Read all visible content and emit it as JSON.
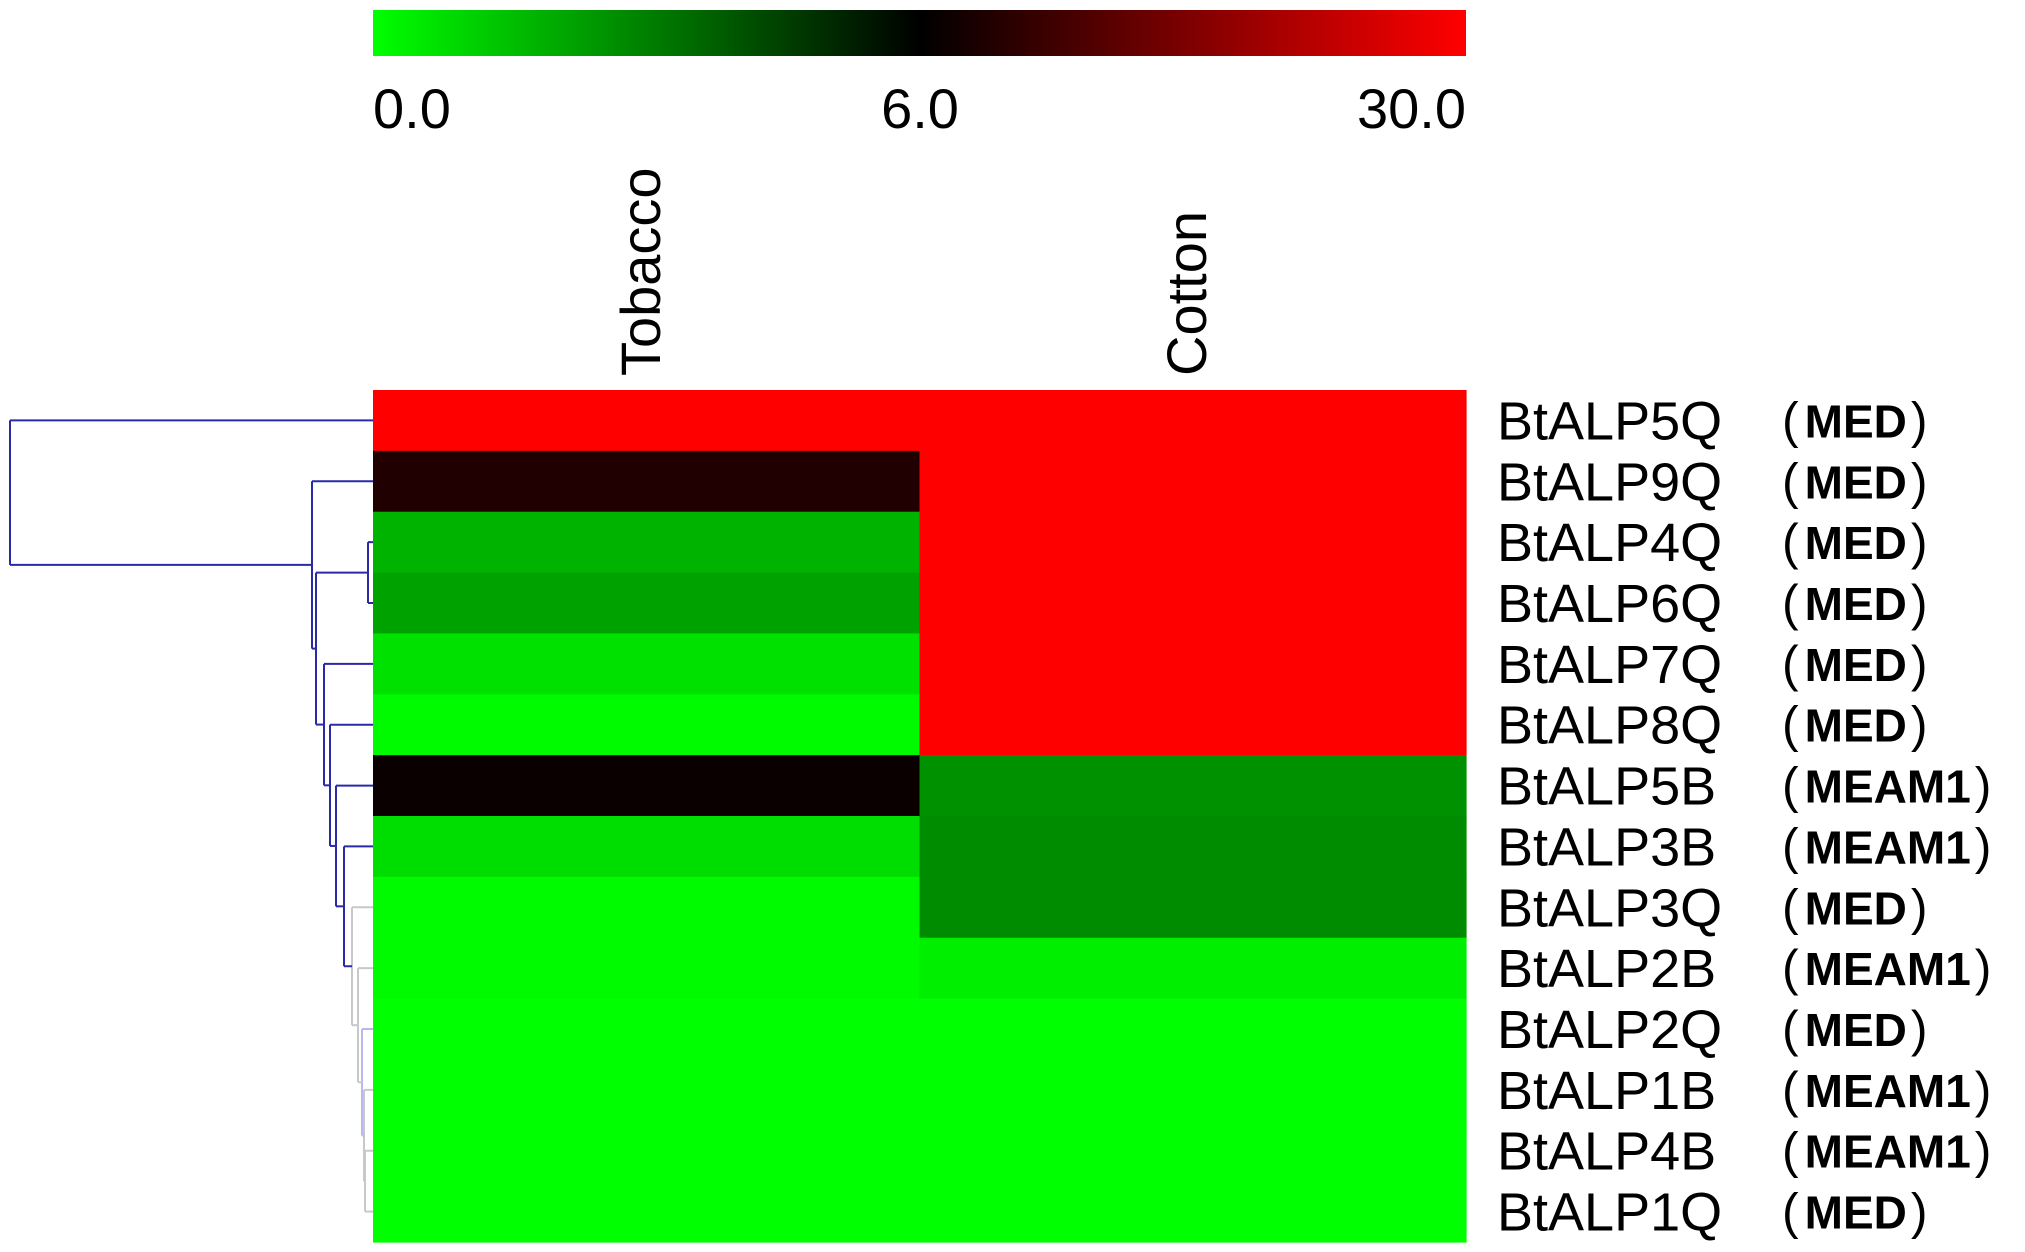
{
  "chart_data": {
    "type": "heatmap",
    "colorbar": {
      "tick_labels": [
        "0.0",
        "6.0",
        "30.0"
      ],
      "stops": [
        {
          "value": 0,
          "color": "#00ff00"
        },
        {
          "value": 6,
          "color": "#000000"
        },
        {
          "value": 30,
          "color": "#ff0000"
        }
      ]
    },
    "columns": [
      "Tobacco",
      "Cotton"
    ],
    "rows": [
      {
        "gene": "BtALP5Q",
        "group": "MED"
      },
      {
        "gene": "BtALP9Q",
        "group": "MED"
      },
      {
        "gene": "BtALP4Q",
        "group": "MED"
      },
      {
        "gene": "BtALP6Q",
        "group": "MED"
      },
      {
        "gene": "BtALP7Q",
        "group": "MED"
      },
      {
        "gene": "BtALP8Q",
        "group": "MED"
      },
      {
        "gene": "BtALP5B",
        "group": "MEAM1"
      },
      {
        "gene": "BtALP3B",
        "group": "MEAM1"
      },
      {
        "gene": "BtALP3Q",
        "group": "MED"
      },
      {
        "gene": "BtALP2B",
        "group": "MEAM1"
      },
      {
        "gene": "BtALP2Q",
        "group": "MED"
      },
      {
        "gene": "BtALP1B",
        "group": "MEAM1"
      },
      {
        "gene": "BtALP4B",
        "group": "MEAM1"
      },
      {
        "gene": "BtALP1Q",
        "group": "MED"
      }
    ],
    "values": [
      [
        30,
        30
      ],
      [
        9,
        30
      ],
      [
        1.8,
        30
      ],
      [
        2.2,
        30
      ],
      [
        0.7,
        30
      ],
      [
        0.1,
        30
      ],
      [
        7,
        2.6
      ],
      [
        0.8,
        2.7
      ],
      [
        0.1,
        2.7
      ],
      [
        0.1,
        0.4
      ],
      [
        0,
        0
      ],
      [
        0,
        0
      ],
      [
        0,
        0
      ],
      [
        0,
        0
      ]
    ],
    "dendrogram": {
      "position": "left",
      "color": "#2a2aa8",
      "faint_color": "#b8b8ee",
      "gray_color": "#c8c8c8"
    }
  }
}
